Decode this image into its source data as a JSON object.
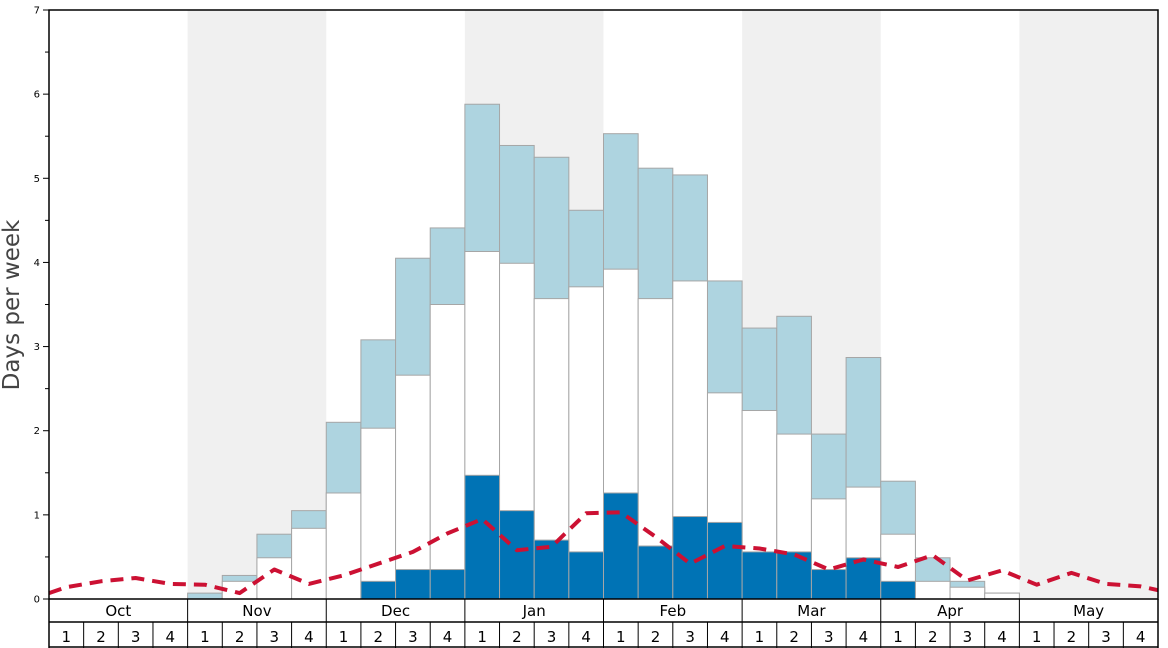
{
  "chart_data": {
    "type": "bar",
    "ylabel": "Days per week",
    "ylim": [
      0,
      7
    ],
    "yticks": [
      0,
      1,
      2,
      3,
      4,
      5,
      6,
      7
    ],
    "months": [
      "Oct",
      "Nov",
      "Dec",
      "Jan",
      "Feb",
      "Mar",
      "Apr",
      "May"
    ],
    "week_labels": [
      "1",
      "2",
      "3",
      "4"
    ],
    "colors": {
      "band": "#f0f0f0",
      "light": "#aed4e0",
      "middle": "#ffffff",
      "dark": "#0073b5",
      "line": "#cc1133",
      "bar_edge": "#a6a6a6"
    },
    "series": [
      {
        "key": "upper",
        "values": [
          0,
          0,
          0,
          0,
          0.07,
          0.28,
          0.77,
          1.05,
          2.1,
          3.08,
          4.05,
          4.41,
          5.88,
          5.39,
          5.25,
          4.62,
          5.53,
          5.12,
          5.04,
          3.78,
          3.22,
          3.36,
          1.96,
          2.87,
          1.4,
          0.49,
          0.21,
          0.07,
          0,
          0,
          0,
          0
        ]
      },
      {
        "key": "middle",
        "values": [
          0,
          0,
          0,
          0,
          0,
          0.21,
          0.49,
          0.84,
          1.26,
          2.03,
          2.66,
          3.5,
          4.13,
          3.99,
          3.57,
          3.71,
          3.92,
          3.57,
          3.78,
          2.45,
          2.24,
          1.96,
          1.19,
          1.33,
          0.77,
          0.21,
          0.14,
          0.07,
          0,
          0,
          0,
          0
        ]
      },
      {
        "key": "lower",
        "values": [
          0,
          0,
          0,
          0,
          0,
          0,
          0,
          0,
          0,
          0.21,
          0.35,
          0.35,
          1.47,
          1.05,
          0.7,
          0.56,
          1.26,
          0.63,
          0.98,
          0.91,
          0.56,
          0.56,
          0.35,
          0.49,
          0.21,
          0,
          0,
          0,
          0,
          0,
          0,
          0
        ]
      },
      {
        "key": "trend",
        "values": [
          0.14,
          0.21,
          0.25,
          0.18,
          0.17,
          0.07,
          0.35,
          0.18,
          0.28,
          0.42,
          0.56,
          0.78,
          0.95,
          0.58,
          0.62,
          1.02,
          1.03,
          0.74,
          0.42,
          0.63,
          0.6,
          0.53,
          0.35,
          0.47,
          0.38,
          0.52,
          0.22,
          0.34,
          0.17,
          0.31,
          0.18,
          0.15
        ]
      }
    ]
  }
}
